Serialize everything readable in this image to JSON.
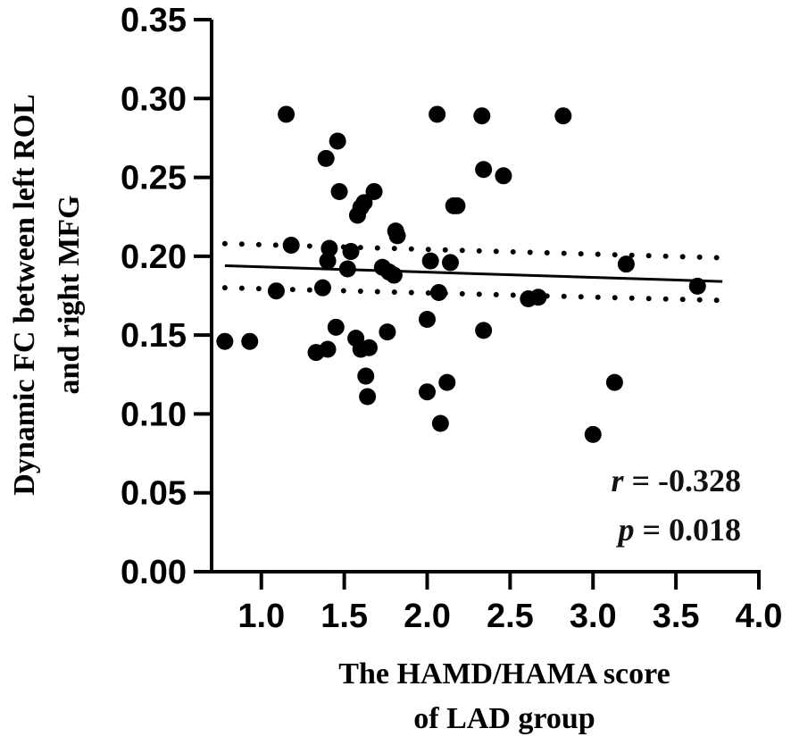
{
  "chart_data": {
    "type": "scatter",
    "title": "",
    "xlabel_lines": [
      "The HAMD/HAMA score",
      "of LAD group"
    ],
    "ylabel_lines": [
      "Dynamic FC between left ROL",
      "and right MFG"
    ],
    "xlim": [
      0.7,
      4.0
    ],
    "ylim": [
      0.0,
      0.35
    ],
    "x_ticks": [
      1.0,
      1.5,
      2.0,
      2.5,
      3.0,
      3.5,
      4.0
    ],
    "x_tick_labels": [
      "1.0",
      "1.5",
      "2.0",
      "2.5",
      "3.0",
      "3.5",
      "4.0"
    ],
    "y_ticks": [
      0.0,
      0.05,
      0.1,
      0.15,
      0.2,
      0.25,
      0.3,
      0.35
    ],
    "y_tick_labels": [
      "0.00",
      "0.05",
      "0.10",
      "0.15",
      "0.20",
      "0.25",
      "0.30",
      "0.35"
    ],
    "points": [
      {
        "x": 0.78,
        "y": 0.146
      },
      {
        "x": 0.93,
        "y": 0.146
      },
      {
        "x": 1.09,
        "y": 0.178
      },
      {
        "x": 1.15,
        "y": 0.29
      },
      {
        "x": 1.18,
        "y": 0.207
      },
      {
        "x": 1.33,
        "y": 0.139
      },
      {
        "x": 1.37,
        "y": 0.18
      },
      {
        "x": 1.39,
        "y": 0.262
      },
      {
        "x": 1.4,
        "y": 0.141
      },
      {
        "x": 1.41,
        "y": 0.205
      },
      {
        "x": 1.4,
        "y": 0.197
      },
      {
        "x": 1.45,
        "y": 0.155
      },
      {
        "x": 1.46,
        "y": 0.273
      },
      {
        "x": 1.47,
        "y": 0.241
      },
      {
        "x": 1.52,
        "y": 0.192
      },
      {
        "x": 1.54,
        "y": 0.203
      },
      {
        "x": 1.57,
        "y": 0.148
      },
      {
        "x": 1.58,
        "y": 0.226
      },
      {
        "x": 1.6,
        "y": 0.231
      },
      {
        "x": 1.6,
        "y": 0.141
      },
      {
        "x": 1.62,
        "y": 0.234
      },
      {
        "x": 1.63,
        "y": 0.124
      },
      {
        "x": 1.64,
        "y": 0.111
      },
      {
        "x": 1.65,
        "y": 0.142
      },
      {
        "x": 1.68,
        "y": 0.241
      },
      {
        "x": 1.73,
        "y": 0.193
      },
      {
        "x": 1.76,
        "y": 0.152
      },
      {
        "x": 1.77,
        "y": 0.19
      },
      {
        "x": 1.8,
        "y": 0.188
      },
      {
        "x": 1.81,
        "y": 0.216
      },
      {
        "x": 1.82,
        "y": 0.213
      },
      {
        "x": 2.0,
        "y": 0.16
      },
      {
        "x": 2.0,
        "y": 0.114
      },
      {
        "x": 2.02,
        "y": 0.197
      },
      {
        "x": 2.06,
        "y": 0.29
      },
      {
        "x": 2.07,
        "y": 0.177
      },
      {
        "x": 2.08,
        "y": 0.094
      },
      {
        "x": 2.12,
        "y": 0.12
      },
      {
        "x": 2.14,
        "y": 0.196
      },
      {
        "x": 2.16,
        "y": 0.232
      },
      {
        "x": 2.18,
        "y": 0.232
      },
      {
        "x": 2.33,
        "y": 0.289
      },
      {
        "x": 2.34,
        "y": 0.255
      },
      {
        "x": 2.34,
        "y": 0.153
      },
      {
        "x": 2.46,
        "y": 0.251
      },
      {
        "x": 2.61,
        "y": 0.173
      },
      {
        "x": 2.67,
        "y": 0.174
      },
      {
        "x": 2.82,
        "y": 0.289
      },
      {
        "x": 3.0,
        "y": 0.087
      },
      {
        "x": 3.13,
        "y": 0.12
      },
      {
        "x": 3.2,
        "y": 0.195
      },
      {
        "x": 3.63,
        "y": 0.181
      }
    ],
    "regression": {
      "x": [
        0.78,
        3.78
      ],
      "y": [
        0.194,
        0.184
      ]
    },
    "confidence_band": {
      "upper": {
        "x": [
          0.78,
          3.78
        ],
        "y": [
          0.208,
          0.199
        ]
      },
      "lower": {
        "x": [
          0.78,
          3.78
        ],
        "y": [
          0.18,
          0.172
        ]
      }
    },
    "annotations": [
      {
        "var": "r",
        "text": " = -0.328"
      },
      {
        "var": "p",
        "text": " =  0.018"
      }
    ]
  }
}
